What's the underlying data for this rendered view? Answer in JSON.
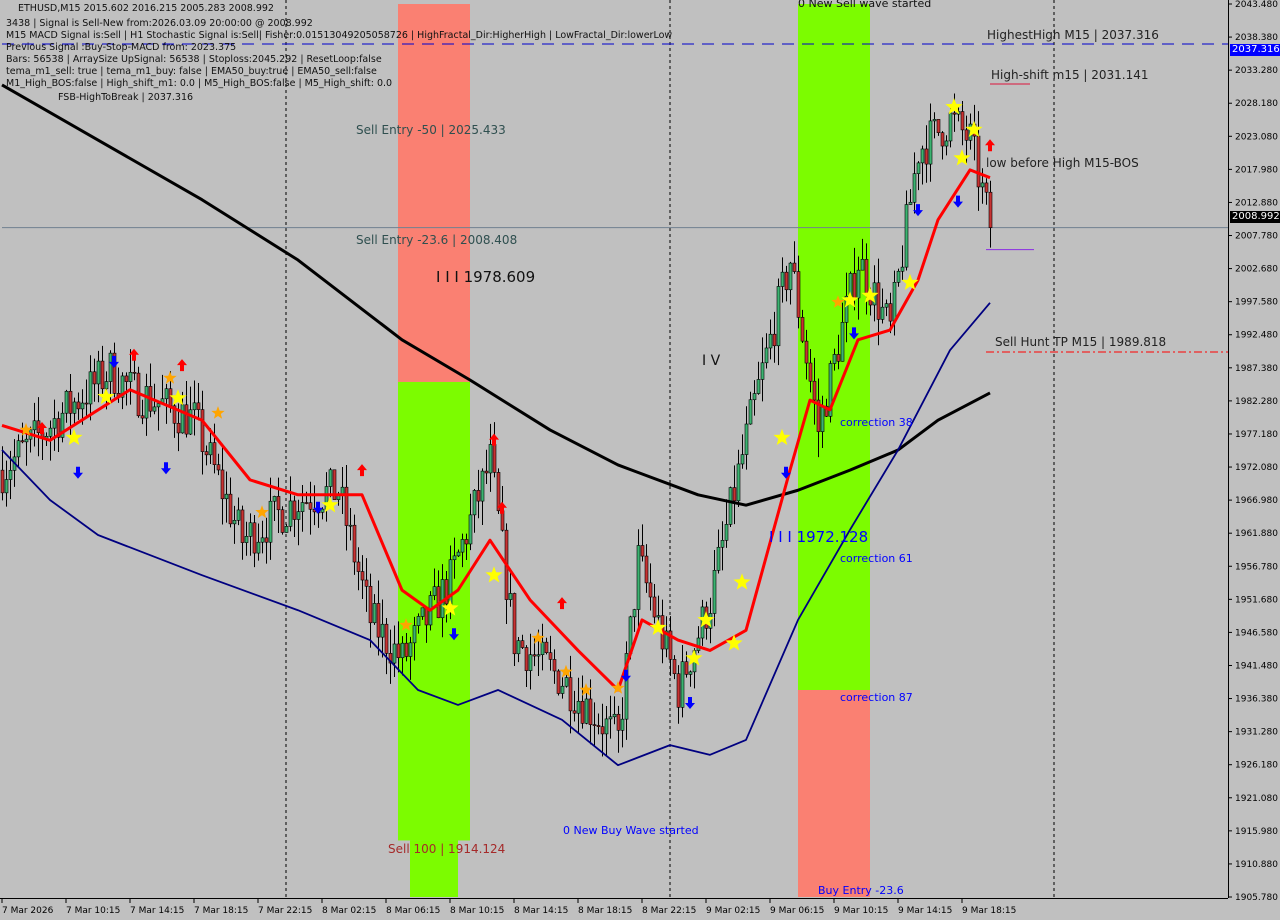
{
  "header": {
    "symbol_line": "ETHUSD,M15  2015.602 2016.215 2005.283 2008.992",
    "lines": [
      "3438 | Signal is Sell-New from:2026.03.09 20:00:00 @ 2008.992",
      "M15 MACD Signal is:Sell | H1 Stochastic Signal is:Sell| Fisher:0.01513049205058726 | HighFractal_Dir:HigherHigh | LowFractal_Dir:lowerLow",
      "Previous Signal :Buy-Stop-MACD from: 2023.375",
      "Bars: 56538 | ArraySize UpSignal: 56538 | Stoploss:2045.292 | ResetLoop:false",
      "tema_m1_sell: true | tema_m1_buy: false | EMA50_buy:true | EMA50_sell:false",
      "M1_High_BOS:false | High_shift_m1: 0.0 | M5_High_BOS:false | M5_High_shift: 0.0"
    ],
    "overlay_text": "FSB-HighToBreak | 2037.316"
  },
  "annotations": {
    "sell_entry_50": "Sell Entry -50 | 2025.433",
    "sell_entry_236": "Sell Entry -23.6 | 2008.408",
    "wave_iii_a": "I I I 1978.609",
    "wave_iv": "I V",
    "wave_iii_b": "I I I 1972.128",
    "correction_38": "correction 38",
    "correction_61": "correction 61",
    "correction_87": "correction 87",
    "sell_100": "Sell 100 | 1914.124",
    "new_buy_wave": "0 New Buy Wave started",
    "new_sell_wave": "0 New Sell wave started",
    "buy_entry": "Buy Entry -23.6",
    "highest_high": "HighestHigh   M15 | 2037.316",
    "high_shift": "High-shift m15 | 2031.141",
    "low_before_high": "low before High    M15-BOS",
    "sell_hunt_tp": "Sell Hunt TP M15 | 1989.818"
  },
  "colors": {
    "background": "#c0c0c0",
    "bull_candle": "#3cb371",
    "bear_candle": "#c83232",
    "sell_zone": "#fa8072",
    "buy_zone": "#7cfc00",
    "ema_red": "#ff0000",
    "ma_black": "#000000",
    "ma_navy": "#000080",
    "highest_high_line": "#0000cd",
    "current_price_tag": "#000000"
  },
  "chart_data": {
    "type": "candlestick",
    "symbol": "ETHUSD",
    "timeframe": "M15",
    "ylim": [
      1905.78,
      2043.48
    ],
    "y_ticks": [
      "2043.480",
      "2038.380",
      "2033.280",
      "2028.180",
      "2023.080",
      "2017.980",
      "2012.880",
      "2007.780",
      "2002.680",
      "1997.580",
      "1992.480",
      "1987.380",
      "1982.280",
      "1977.180",
      "1972.080",
      "1966.980",
      "1961.880",
      "1956.780",
      "1951.680",
      "1946.580",
      "1941.480",
      "1936.380",
      "1931.280",
      "1926.180",
      "1921.080",
      "1915.980",
      "1910.880",
      "1905.780"
    ],
    "x_ticks": [
      {
        "t": "03-07 06:15",
        "label": "7 Mar 2026"
      },
      {
        "t": "03-07 10:15",
        "label": "7 Mar 10:15"
      },
      {
        "t": "03-07 14:15",
        "label": "7 Mar 14:15"
      },
      {
        "t": "03-07 18:15",
        "label": "7 Mar 18:15"
      },
      {
        "t": "03-07 22:15",
        "label": "7 Mar 22:15"
      },
      {
        "t": "03-08 02:15",
        "label": "8 Mar 02:15"
      },
      {
        "t": "03-08 06:15",
        "label": "8 Mar 06:15"
      },
      {
        "t": "03-08 10:15",
        "label": "8 Mar 10:15"
      },
      {
        "t": "03-08 14:15",
        "label": "8 Mar 14:15"
      },
      {
        "t": "03-08 18:15",
        "label": "8 Mar 18:15"
      },
      {
        "t": "03-08 22:15",
        "label": "8 Mar 22:15"
      },
      {
        "t": "03-09 02:15",
        "label": "9 Mar 02:15"
      },
      {
        "t": "03-09 06:15",
        "label": "9 Mar 06:15"
      },
      {
        "t": "03-09 10:15",
        "label": "9 Mar 10:15"
      },
      {
        "t": "03-09 14:15",
        "label": "9 Mar 14:15"
      },
      {
        "t": "03-09 18:15",
        "label": "9 Mar 18:15"
      }
    ],
    "day_separators": [
      "03-08 00:00",
      "03-09 00:00",
      "03-10 00:00"
    ],
    "current_price": "2008.992",
    "highest_high": "2037.316",
    "price_path": [
      [
        "03-07 06:15",
        1971.6
      ],
      [
        "03-07 10:15",
        1980.9
      ],
      [
        "03-07 13:00",
        1987.0
      ],
      [
        "03-07 14:15",
        1984.0
      ],
      [
        "03-07 18:15",
        1979.3
      ],
      [
        "03-07 21:15",
        1960.8
      ],
      [
        "03-08 00:45",
        1967.0
      ],
      [
        "03-08 03:15",
        1968.5
      ],
      [
        "03-08 05:15",
        1948.5
      ],
      [
        "03-08 07:15",
        1942.3
      ],
      [
        "03-08 10:15",
        1954.6
      ],
      [
        "03-08 12:45",
        1973.0
      ],
      [
        "03-08 14:15",
        1945.4
      ],
      [
        "03-08 17:15",
        1939.3
      ],
      [
        "03-08 20:45",
        1930.0
      ],
      [
        "03-08 22:00",
        1957.8
      ],
      [
        "03-09 00:30",
        1937.7
      ],
      [
        "03-09 02:30",
        1951.6
      ],
      [
        "03-09 05:00",
        1979.3
      ],
      [
        "03-09 07:30",
        2004.0
      ],
      [
        "03-09 09:15",
        1977.8
      ],
      [
        "03-09 11:45",
        2004.0
      ],
      [
        "03-09 13:45",
        1993.2
      ],
      [
        "03-09 15:30",
        2021.0
      ],
      [
        "03-09 17:30",
        2025.6
      ],
      [
        "03-09 18:45",
        2022.5
      ],
      [
        "03-09 20:00",
        2008.992
      ]
    ],
    "series": [
      {
        "color": "#000000",
        "values": [
          [
            "03-07 06:15",
            2031.0
          ],
          [
            "03-07 12:15",
            2022.5
          ],
          [
            "03-07 18:45",
            2013.3
          ],
          [
            "03-08 00:45",
            2004.0
          ],
          [
            "03-08 07:15",
            1991.7
          ],
          [
            "03-08 11:30",
            1985.5
          ],
          [
            "03-08 16:30",
            1977.8
          ],
          [
            "03-08 20:45",
            1972.4
          ],
          [
            "03-09 01:45",
            1967.8
          ],
          [
            "03-09 04:45",
            1966.2
          ],
          [
            "03-09 08:00",
            1968.5
          ],
          [
            "03-09 11:15",
            1971.6
          ],
          [
            "03-09 14:15",
            1974.7
          ],
          [
            "03-09 16:45",
            1979.3
          ],
          [
            "03-09 20:00",
            1983.5
          ]
        ]
      },
      {
        "color": "#000080",
        "values": [
          [
            "03-07 06:15",
            1974.7
          ],
          [
            "03-07 09:15",
            1967.0
          ],
          [
            "03-07 12:15",
            1961.6
          ],
          [
            "03-07 18:45",
            1955.4
          ],
          [
            "03-08 00:45",
            1950.0
          ],
          [
            "03-08 05:15",
            1945.4
          ],
          [
            "03-08 08:15",
            1937.7
          ],
          [
            "03-08 10:45",
            1935.4
          ],
          [
            "03-08 13:15",
            1937.7
          ],
          [
            "03-08 17:15",
            1933.1
          ],
          [
            "03-08 20:45",
            1926.1
          ],
          [
            "03-09 00:00",
            1929.2
          ],
          [
            "03-09 02:30",
            1927.7
          ],
          [
            "03-09 04:45",
            1930.0
          ],
          [
            "03-09 08:00",
            1948.5
          ],
          [
            "03-09 11:15",
            1962.4
          ],
          [
            "03-09 14:15",
            1974.7
          ],
          [
            "03-09 17:30",
            1990.1
          ],
          [
            "03-09 20:00",
            1997.4
          ]
        ]
      },
      {
        "color": "#ff0000",
        "values": [
          [
            "03-07 06:15",
            1978.5
          ],
          [
            "03-07 09:15",
            1976.2
          ],
          [
            "03-07 14:15",
            1984.0
          ],
          [
            "03-07 18:45",
            1979.3
          ],
          [
            "03-07 21:45",
            1970.1
          ],
          [
            "03-08 00:45",
            1967.8
          ],
          [
            "03-08 04:45",
            1967.8
          ],
          [
            "03-08 07:15",
            1953.1
          ],
          [
            "03-08 09:00",
            1950.0
          ],
          [
            "03-08 10:45",
            1953.1
          ],
          [
            "03-08 12:45",
            1960.8
          ],
          [
            "03-08 15:15",
            1951.6
          ],
          [
            "03-08 18:15",
            1943.8
          ],
          [
            "03-08 20:45",
            1937.7
          ],
          [
            "03-08 22:15",
            1948.5
          ],
          [
            "03-09 00:30",
            1945.4
          ],
          [
            "03-09 02:30",
            1943.8
          ],
          [
            "03-09 04:45",
            1946.9
          ],
          [
            "03-09 07:30",
            1971.6
          ],
          [
            "03-09 08:45",
            1982.4
          ],
          [
            "03-09 10:00",
            1980.9
          ],
          [
            "03-09 11:45",
            1991.7
          ],
          [
            "03-09 13:45",
            1993.2
          ],
          [
            "03-09 15:30",
            2000.9
          ],
          [
            "03-09 16:45",
            2010.2
          ],
          [
            "03-09 18:45",
            2017.9
          ],
          [
            "03-09 20:00",
            2016.7
          ]
        ]
      }
    ],
    "zones": [
      {
        "type": "sell",
        "from": "03-08 07:00",
        "to": "03-08 11:30",
        "top": 2043.48,
        "bottom": 1985.2
      },
      {
        "type": "buy",
        "from": "03-08 07:00",
        "to": "03-08 11:30",
        "top": 1985.2,
        "bottom": 1914.5
      },
      {
        "type": "buy",
        "from": "03-08 07:45",
        "to": "03-08 10:45",
        "top": 1914.5,
        "bottom": 1905.78
      },
      {
        "type": "buy",
        "from": "03-09 08:00",
        "to": "03-09 12:30",
        "top": 2043.48,
        "bottom": 1937.7
      },
      {
        "type": "sell",
        "from": "03-09 08:00",
        "to": "03-09 12:30",
        "top": 1937.7,
        "bottom": 1905.78
      }
    ],
    "levels": [
      {
        "price": 2037.316,
        "style": "dashed",
        "color": "#0000cd",
        "from": "03-07 06:15"
      },
      {
        "price": 2008.992,
        "style": "solid",
        "color": "#708090",
        "from": "03-07 06:15"
      },
      {
        "price": 1989.818,
        "style": "dashdot",
        "color": "#ff0000",
        "from": "03-09 19:45"
      },
      {
        "price": 2031.141,
        "style": "solid",
        "color": "#dc143c",
        "from": "03-09 20:00",
        "to": "03-09 22:30"
      },
      {
        "price": 2005.6,
        "style": "solid",
        "color": "#8a2be2",
        "from": "03-09 19:45",
        "to": "03-09 22:45"
      }
    ],
    "buy_arrows": [
      [
        "03-07 13:15",
        1988.3
      ],
      [
        "03-07 11:00",
        1971.2
      ],
      [
        "03-07 16:30",
        1971.9
      ],
      [
        "03-08 02:00",
        1965.8
      ],
      [
        "03-08 10:30",
        1946.3
      ],
      [
        "03-08 21:15",
        1939.9
      ],
      [
        "03-09 01:15",
        1935.7
      ],
      [
        "03-09 07:15",
        1971.2
      ],
      [
        "03-09 11:30",
        1992.7
      ],
      [
        "03-09 15:30",
        2011.7
      ],
      [
        "03-09 18:00",
        2013.0
      ]
    ],
    "sell_arrows": [
      [
        "03-07 08:45",
        1978.1
      ],
      [
        "03-07 14:30",
        1989.4
      ],
      [
        "03-07 17:30",
        1987.8
      ],
      [
        "03-08 04:45",
        1971.6
      ],
      [
        "03-08 13:00",
        1976.3
      ],
      [
        "03-08 13:30",
        1965.8
      ],
      [
        "03-08 17:15",
        1951.1
      ],
      [
        "03-09 20:00",
        2021.7
      ]
    ],
    "yellow_stars": [
      [
        "03-07 12:45",
        1982.9
      ],
      [
        "03-07 10:45",
        1976.6
      ],
      [
        "03-07 17:15",
        1982.7
      ],
      [
        "03-08 02:45",
        1966.2
      ],
      [
        "03-08 10:15",
        1950.3
      ],
      [
        "03-08 13:00",
        1955.4
      ],
      [
        "03-08 23:15",
        1947.3
      ],
      [
        "03-09 01:30",
        1942.6
      ],
      [
        "03-09 02:15",
        1948.5
      ],
      [
        "03-09 04:00",
        1944.9
      ],
      [
        "03-09 04:30",
        1954.3
      ],
      [
        "03-09 07:00",
        1976.6
      ],
      [
        "03-09 11:15",
        1997.8
      ],
      [
        "03-09 12:30",
        1998.5
      ],
      [
        "03-09 15:00",
        2000.5
      ],
      [
        "03-09 17:45",
        2027.6
      ],
      [
        "03-09 18:15",
        2019.7
      ],
      [
        "03-09 19:00",
        2024.1
      ]
    ],
    "orange_stars": [
      [
        "03-07 07:45",
        1977.8
      ],
      [
        "03-07 16:45",
        1985.8
      ],
      [
        "03-07 19:45",
        1980.4
      ],
      [
        "03-07 22:30",
        1965.1
      ],
      [
        "03-08 07:30",
        1947.7
      ],
      [
        "03-08 15:45",
        1945.7
      ],
      [
        "03-08 17:30",
        1940.5
      ],
      [
        "03-08 18:45",
        1937.7
      ],
      [
        "03-08 20:45",
        1938.0
      ],
      [
        "03-09 10:30",
        1997.5
      ]
    ]
  }
}
